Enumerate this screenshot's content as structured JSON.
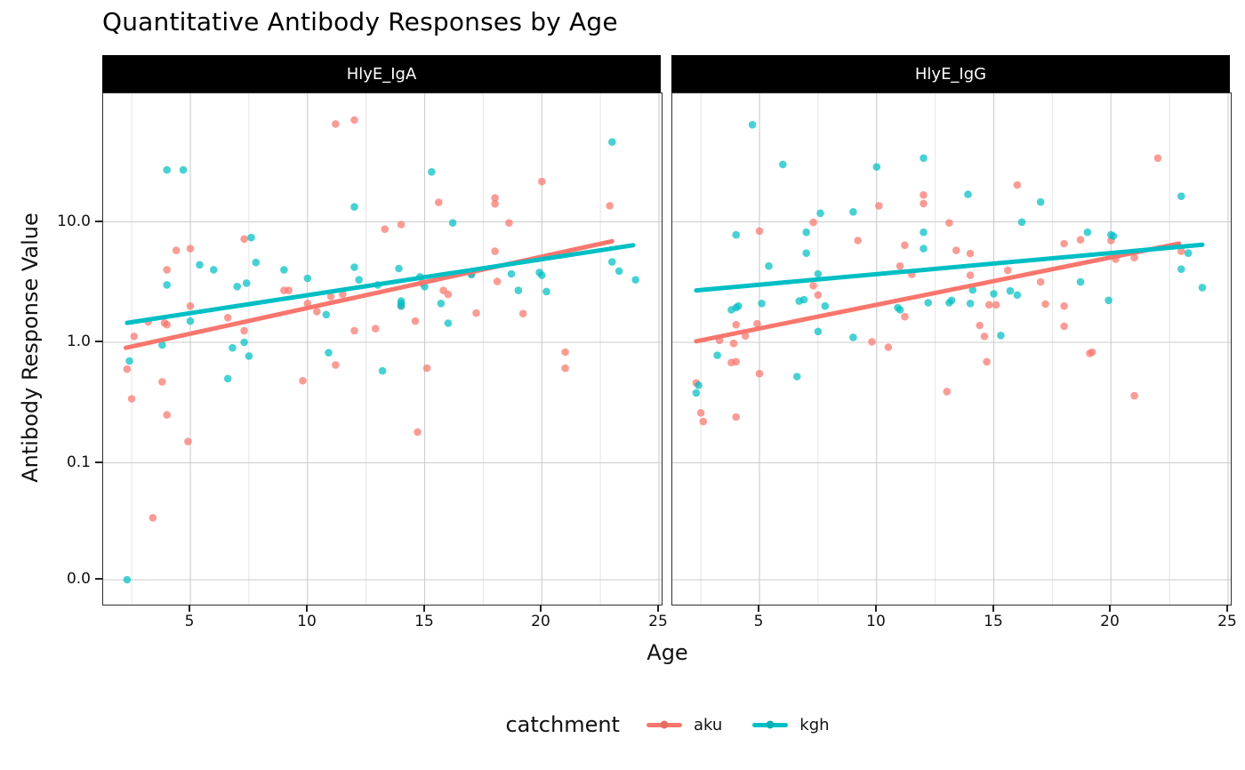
{
  "title": "Quantitative Antibody Responses by Age",
  "axes": {
    "x_label": "Age",
    "y_label": "Antibody Response Value",
    "x_ticks": [
      {
        "label": "5",
        "value": 5
      },
      {
        "label": "10",
        "value": 10
      },
      {
        "label": "15",
        "value": 15
      },
      {
        "label": "20",
        "value": 20
      },
      {
        "label": "25",
        "value": 25
      }
    ],
    "x_minor_ticks": [
      2.5,
      7.5,
      12.5,
      17.5,
      22.5
    ],
    "y_ticks": [
      {
        "label": "10.0",
        "value": 10
      },
      {
        "label": "1.0",
        "value": 1
      },
      {
        "label": "0.1",
        "value": 0.1
      },
      {
        "label": "0.0",
        "value": 0
      }
    ],
    "y_scale": "log10-with-zero",
    "grid": true
  },
  "legend": {
    "title": "catchment",
    "position": "bottom",
    "items": [
      {
        "label": "aku",
        "color": "#F8766D"
      },
      {
        "label": "kgh",
        "color": "#00BFC4"
      }
    ]
  },
  "colors": {
    "aku": "#F8766D",
    "kgh": "#00BFC4",
    "strip_bg": "#000000",
    "strip_text": "#ffffff",
    "grid_major": "#cccccc",
    "grid_minor": "#e4e4e4",
    "panel_border": "#2e2e2e"
  },
  "chart_data": [
    {
      "type": "scatter",
      "panel": "HlyE_IgA",
      "xlim": [
        1.3,
        25.1
      ],
      "series": [
        {
          "name": "aku",
          "points": [
            [
              2.3,
              0.6
            ],
            [
              2.5,
              0.34
            ],
            [
              2.6,
              1.12
            ],
            [
              3.2,
              1.48
            ],
            [
              3.4,
              0.035
            ],
            [
              3.8,
              0.47
            ],
            [
              3.9,
              1.45
            ],
            [
              4.0,
              1.4
            ],
            [
              4.0,
              0.25
            ],
            [
              4.0,
              4.0
            ],
            [
              4.4,
              5.8
            ],
            [
              4.9,
              0.15
            ],
            [
              5.0,
              6.0
            ],
            [
              5.0,
              2.0
            ],
            [
              6.6,
              1.6
            ],
            [
              7.3,
              7.2
            ],
            [
              7.3,
              1.25
            ],
            [
              9.0,
              2.7
            ],
            [
              9.2,
              2.7
            ],
            [
              9.8,
              0.48
            ],
            [
              10.0,
              2.1
            ],
            [
              10.4,
              1.8
            ],
            [
              11.0,
              2.4
            ],
            [
              11.2,
              65
            ],
            [
              11.2,
              0.65
            ],
            [
              11.5,
              2.5
            ],
            [
              12.0,
              70
            ],
            [
              12.0,
              1.25
            ],
            [
              12.9,
              1.3
            ],
            [
              13.3,
              8.7
            ],
            [
              14.0,
              9.5
            ],
            [
              14.0,
              2.0
            ],
            [
              14.6,
              1.5
            ],
            [
              14.7,
              0.18
            ],
            [
              14.9,
              3.1
            ],
            [
              15.1,
              0.61
            ],
            [
              15.6,
              14.5
            ],
            [
              15.8,
              2.7
            ],
            [
              16.0,
              2.5
            ],
            [
              17.0,
              3.7
            ],
            [
              17.2,
              1.75
            ],
            [
              18.0,
              15.8
            ],
            [
              18.0,
              14.1
            ],
            [
              18.0,
              5.7
            ],
            [
              18.1,
              3.2
            ],
            [
              18.6,
              9.8
            ],
            [
              19.2,
              1.73
            ],
            [
              20.0,
              21.6
            ],
            [
              21.0,
              0.83
            ],
            [
              21.0,
              0.61
            ],
            [
              22.9,
              13.6
            ]
          ],
          "trend": {
            "x": [
              2.25,
              23.0
            ],
            "y": [
              0.9,
              6.9
            ]
          }
        },
        {
          "name": "kgh",
          "points": [
            [
              2.3,
              0
            ],
            [
              2.4,
              0.7
            ],
            [
              3.8,
              0.95
            ],
            [
              4.0,
              27
            ],
            [
              4.0,
              3.0
            ],
            [
              4.7,
              27
            ],
            [
              5.0,
              1.5
            ],
            [
              5.4,
              4.4
            ],
            [
              6.0,
              4.0
            ],
            [
              6.6,
              0.5
            ],
            [
              6.8,
              0.9
            ],
            [
              7.0,
              2.9
            ],
            [
              7.3,
              1.0
            ],
            [
              7.4,
              3.1
            ],
            [
              7.5,
              0.77
            ],
            [
              7.6,
              7.4
            ],
            [
              7.8,
              4.6
            ],
            [
              9.0,
              4.0
            ],
            [
              10.0,
              3.4
            ],
            [
              10.8,
              1.7
            ],
            [
              10.9,
              0.82
            ],
            [
              12.0,
              13.3
            ],
            [
              12.0,
              4.2
            ],
            [
              12.2,
              3.3
            ],
            [
              13.0,
              3.0
            ],
            [
              13.2,
              0.58
            ],
            [
              13.9,
              4.1
            ],
            [
              14.0,
              2.2
            ],
            [
              14.0,
              2.1
            ],
            [
              14.0,
              2.0
            ],
            [
              14.8,
              3.5
            ],
            [
              15.0,
              2.9
            ],
            [
              15.3,
              26
            ],
            [
              15.7,
              2.1
            ],
            [
              16.0,
              1.44
            ],
            [
              16.2,
              9.8
            ],
            [
              17.0,
              3.65
            ],
            [
              18.7,
              3.7
            ],
            [
              19.0,
              2.7
            ],
            [
              19.9,
              3.8
            ],
            [
              20.0,
              3.6
            ],
            [
              20.2,
              2.64
            ],
            [
              23.0,
              46
            ],
            [
              23.0,
              4.65
            ],
            [
              23.3,
              3.9
            ],
            [
              24.0,
              3.3
            ]
          ],
          "trend": {
            "x": [
              2.3,
              23.9
            ],
            "y": [
              1.45,
              6.4
            ]
          }
        }
      ]
    },
    {
      "type": "scatter",
      "panel": "HlyE_IgG",
      "xlim": [
        1.3,
        25.1
      ],
      "series": [
        {
          "name": "aku",
          "points": [
            [
              2.3,
              0.46
            ],
            [
              2.5,
              0.26
            ],
            [
              2.6,
              0.22
            ],
            [
              3.3,
              1.04
            ],
            [
              3.8,
              0.68
            ],
            [
              3.9,
              0.98
            ],
            [
              4.0,
              1.4
            ],
            [
              4.0,
              0.69
            ],
            [
              4.0,
              0.24
            ],
            [
              4.4,
              1.13
            ],
            [
              4.9,
              1.43
            ],
            [
              5.0,
              8.4
            ],
            [
              5.0,
              0.55
            ],
            [
              7.3,
              9.9
            ],
            [
              7.3,
              2.95
            ],
            [
              7.5,
              2.47
            ],
            [
              9.2,
              7.0
            ],
            [
              9.8,
              1.01
            ],
            [
              10.1,
              13.6
            ],
            [
              10.5,
              0.91
            ],
            [
              11.0,
              4.3
            ],
            [
              11.2,
              6.4
            ],
            [
              11.2,
              1.63
            ],
            [
              11.5,
              3.66
            ],
            [
              12.0,
              16.7
            ],
            [
              12.0,
              14.2
            ],
            [
              13.0,
              0.39
            ],
            [
              13.1,
              9.8
            ],
            [
              13.4,
              5.8
            ],
            [
              14.0,
              5.45
            ],
            [
              14.0,
              3.6
            ],
            [
              14.4,
              1.38
            ],
            [
              14.6,
              1.12
            ],
            [
              14.7,
              0.69
            ],
            [
              14.8,
              2.05
            ],
            [
              15.1,
              2.05
            ],
            [
              15.6,
              3.96
            ],
            [
              16.0,
              20.2
            ],
            [
              17.0,
              3.17
            ],
            [
              17.2,
              2.08
            ],
            [
              18.0,
              6.6
            ],
            [
              18.0,
              2.0
            ],
            [
              18.0,
              1.36
            ],
            [
              18.7,
              7.1
            ],
            [
              19.1,
              0.81
            ],
            [
              19.2,
              0.83
            ],
            [
              20.0,
              7.0
            ],
            [
              20.2,
              4.9
            ],
            [
              21.0,
              0.36
            ],
            [
              21.0,
              5.05
            ],
            [
              22.0,
              33.8
            ],
            [
              23.0,
              5.7
            ]
          ],
          "trend": {
            "x": [
              2.3,
              22.9
            ],
            "y": [
              1.02,
              6.6
            ]
          }
        },
        {
          "name": "kgh",
          "points": [
            [
              2.3,
              0.38
            ],
            [
              2.4,
              0.44
            ],
            [
              3.2,
              0.78
            ],
            [
              3.8,
              1.86
            ],
            [
              4.0,
              1.94
            ],
            [
              4.0,
              7.8
            ],
            [
              4.1,
              2.0
            ],
            [
              4.7,
              64
            ],
            [
              5.1,
              2.1
            ],
            [
              5.4,
              4.3
            ],
            [
              6.0,
              30
            ],
            [
              6.6,
              0.52
            ],
            [
              6.7,
              2.2
            ],
            [
              6.9,
              2.26
            ],
            [
              7.0,
              8.2
            ],
            [
              7.0,
              5.5
            ],
            [
              7.5,
              3.7
            ],
            [
              7.5,
              1.23
            ],
            [
              7.6,
              11.8
            ],
            [
              7.8,
              2.0
            ],
            [
              9.0,
              12.1
            ],
            [
              9.0,
              1.1
            ],
            [
              10.0,
              28.6
            ],
            [
              10.9,
              1.94
            ],
            [
              11.0,
              1.86
            ],
            [
              12.0,
              33.8
            ],
            [
              12.0,
              8.2
            ],
            [
              12.0,
              6.0
            ],
            [
              12.2,
              2.13
            ],
            [
              13.1,
              2.13
            ],
            [
              13.2,
              2.23
            ],
            [
              13.9,
              16.9
            ],
            [
              14.0,
              2.1
            ],
            [
              14.1,
              2.72
            ],
            [
              15.0,
              2.53
            ],
            [
              15.3,
              1.14
            ],
            [
              15.7,
              2.67
            ],
            [
              16.0,
              2.47
            ],
            [
              16.2,
              9.95
            ],
            [
              17.0,
              14.6
            ],
            [
              18.7,
              3.17
            ],
            [
              19.0,
              8.2
            ],
            [
              19.9,
              2.23
            ],
            [
              20.0,
              7.8
            ],
            [
              20.1,
              7.6
            ],
            [
              23.0,
              16.3
            ],
            [
              23.0,
              4.05
            ],
            [
              23.3,
              5.5
            ],
            [
              23.9,
              2.85
            ]
          ],
          "trend": {
            "x": [
              2.3,
              23.9
            ],
            "y": [
              2.7,
              6.45
            ]
          }
        }
      ]
    }
  ]
}
